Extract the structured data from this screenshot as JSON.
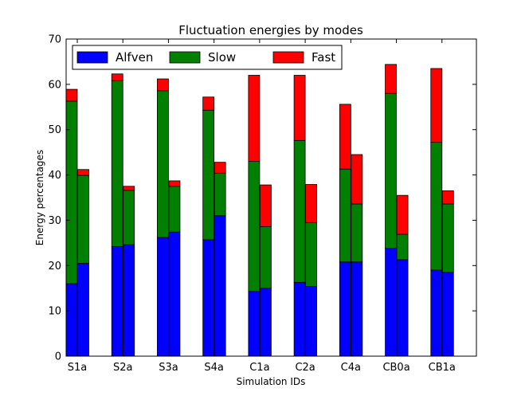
{
  "chart_data": {
    "type": "bar",
    "stacked": true,
    "title": "Fluctuation energies by modes",
    "xlabel": "Simulation IDs",
    "ylabel": "Energy percentages",
    "ylim": [
      0,
      70
    ],
    "yticks": [
      0,
      10,
      20,
      30,
      40,
      50,
      60,
      70
    ],
    "grid": false,
    "legend_position": "top-left",
    "categories": [
      "S1a",
      "S2a",
      "S3a",
      "S4a",
      "C1a",
      "C2a",
      "C4a",
      "CB0a",
      "CB1a"
    ],
    "bars_per_category": 2,
    "series": [
      {
        "name": "Alfven",
        "color": "#0000ff",
        "values": [
          [
            16.0,
            20.5
          ],
          [
            24.2,
            24.6
          ],
          [
            26.2,
            27.4
          ],
          [
            25.7,
            31.0
          ],
          [
            14.3,
            15.0
          ],
          [
            16.3,
            15.4
          ],
          [
            20.8,
            20.8
          ],
          [
            23.8,
            21.3
          ],
          [
            19.0,
            18.5
          ]
        ]
      },
      {
        "name": "Slow",
        "color": "#007f00",
        "values": [
          [
            40.3,
            19.4
          ],
          [
            36.6,
            12.0
          ],
          [
            32.4,
            10.1
          ],
          [
            28.6,
            9.4
          ],
          [
            28.7,
            13.6
          ],
          [
            31.3,
            14.1
          ],
          [
            20.5,
            12.8
          ],
          [
            34.2,
            5.6
          ],
          [
            28.2,
            15.1
          ]
        ]
      },
      {
        "name": "Fast",
        "color": "#ff0000",
        "values": [
          [
            2.6,
            1.3
          ],
          [
            1.5,
            0.9
          ],
          [
            2.6,
            1.2
          ],
          [
            2.9,
            2.4
          ],
          [
            19.0,
            9.2
          ],
          [
            14.4,
            8.4
          ],
          [
            14.3,
            10.9
          ],
          [
            6.4,
            8.6
          ],
          [
            16.3,
            2.9
          ]
        ]
      }
    ]
  }
}
